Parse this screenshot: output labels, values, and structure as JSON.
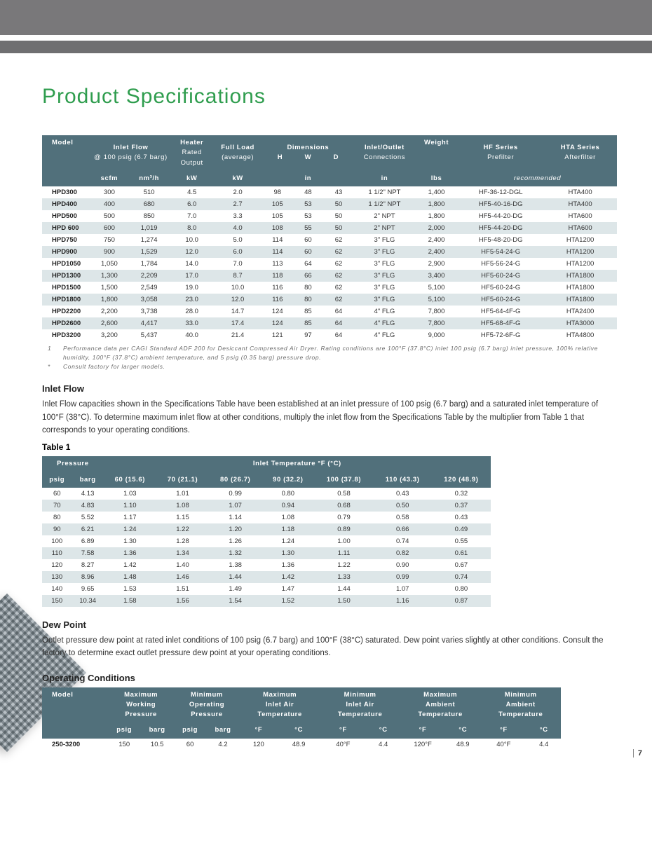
{
  "page": {
    "title": "Product Specifications",
    "number": "7"
  },
  "spec_table": {
    "header": {
      "model": "Model",
      "inlet_flow": "Inlet Flow",
      "inlet_flow_sub": "@ 100 psig\n(6.7 barg)",
      "heater": "Heater",
      "heater_sub": "Rated\nOutput",
      "full_load": "Full Load",
      "full_load_sub": "(average)",
      "dimensions": "Dimensions",
      "dim_h": "H",
      "dim_w": "W",
      "dim_d": "D",
      "connections": "Inlet/Outlet",
      "connections_sub": "Connections",
      "weight": "Weight",
      "hf": "HF Series",
      "hf_sub": "Prefilter",
      "hta": "HTA Series",
      "hta_sub": "Afterfilter",
      "unit_scfm": "scfm",
      "unit_nm3h": "nm³/h",
      "unit_kw1": "kW",
      "unit_kw2": "kW",
      "unit_in1": "in",
      "unit_in2": "in",
      "unit_lbs": "lbs",
      "recommended": "recommended"
    },
    "rows": [
      {
        "model": "HPD300",
        "scfm": "300",
        "nm3h": "510",
        "kw1": "4.5",
        "kw2": "2.0",
        "h": "98",
        "w": "48",
        "d": "43",
        "conn": "1 1/2\" NPT",
        "lbs": "1,400",
        "hf": "HF-36-12-DGL",
        "hta": "HTA400"
      },
      {
        "model": "HPD400",
        "scfm": "400",
        "nm3h": "680",
        "kw1": "6.0",
        "kw2": "2.7",
        "h": "105",
        "w": "53",
        "d": "50",
        "conn": "1 1/2\" NPT",
        "lbs": "1,800",
        "hf": "HF5-40-16-DG",
        "hta": "HTA400"
      },
      {
        "model": "HPD500",
        "scfm": "500",
        "nm3h": "850",
        "kw1": "7.0",
        "kw2": "3.3",
        "h": "105",
        "w": "53",
        "d": "50",
        "conn": "2\" NPT",
        "lbs": "1,800",
        "hf": "HF5-44-20-DG",
        "hta": "HTA600"
      },
      {
        "model": "HPD 600",
        "scfm": "600",
        "nm3h": "1,019",
        "kw1": "8.0",
        "kw2": "4.0",
        "h": "108",
        "w": "55",
        "d": "50",
        "conn": "2\" NPT",
        "lbs": "2,000",
        "hf": "HF5-44-20-DG",
        "hta": "HTA600"
      },
      {
        "model": "HPD750",
        "scfm": "750",
        "nm3h": "1,274",
        "kw1": "10.0",
        "kw2": "5.0",
        "h": "114",
        "w": "60",
        "d": "62",
        "conn": "3\" FLG",
        "lbs": "2,400",
        "hf": "HF5-48-20-DG",
        "hta": "HTA1200"
      },
      {
        "model": "HPD900",
        "scfm": "900",
        "nm3h": "1,529",
        "kw1": "12.0",
        "kw2": "6.0",
        "h": "114",
        "w": "60",
        "d": "62",
        "conn": "3\" FLG",
        "lbs": "2,400",
        "hf": "HF5-54-24-G",
        "hta": "HTA1200"
      },
      {
        "model": "HPD1050",
        "scfm": "1,050",
        "nm3h": "1,784",
        "kw1": "14.0",
        "kw2": "7.0",
        "h": "113",
        "w": "64",
        "d": "62",
        "conn": "3\" FLG",
        "lbs": "2,900",
        "hf": "HF5-56-24-G",
        "hta": "HTA1200"
      },
      {
        "model": "HPD1300",
        "scfm": "1,300",
        "nm3h": "2,209",
        "kw1": "17.0",
        "kw2": "8.7",
        "h": "118",
        "w": "66",
        "d": "62",
        "conn": "3\" FLG",
        "lbs": "3,400",
        "hf": "HF5-60-24-G",
        "hta": "HTA1800"
      },
      {
        "model": "HPD1500",
        "scfm": "1,500",
        "nm3h": "2,549",
        "kw1": "19.0",
        "kw2": "10.0",
        "h": "116",
        "w": "80",
        "d": "62",
        "conn": "3\" FLG",
        "lbs": "5,100",
        "hf": "HF5-60-24-G",
        "hta": "HTA1800"
      },
      {
        "model": "HPD1800",
        "scfm": "1,800",
        "nm3h": "3,058",
        "kw1": "23.0",
        "kw2": "12.0",
        "h": "116",
        "w": "80",
        "d": "62",
        "conn": "3\" FLG",
        "lbs": "5,100",
        "hf": "HF5-60-24-G",
        "hta": "HTA1800"
      },
      {
        "model": "HPD2200",
        "scfm": "2,200",
        "nm3h": "3,738",
        "kw1": "28.0",
        "kw2": "14.7",
        "h": "124",
        "w": "85",
        "d": "64",
        "conn": "4\" FLG",
        "lbs": "7,800",
        "hf": "HF5-64-4F-G",
        "hta": "HTA2400"
      },
      {
        "model": "HPD2600",
        "scfm": "2,600",
        "nm3h": "4,417",
        "kw1": "33.0",
        "kw2": "17.4",
        "h": "124",
        "w": "85",
        "d": "64",
        "conn": "4\" FLG",
        "lbs": "7,800",
        "hf": "HF5-68-4F-G",
        "hta": "HTA3000"
      },
      {
        "model": "HPD3200",
        "scfm": "3,200",
        "nm3h": "5,437",
        "kw1": "40.0",
        "kw2": "21.4",
        "h": "121",
        "w": "97",
        "d": "64",
        "conn": "4\" FLG",
        "lbs": "9,000",
        "hf": "HF5-72-6F-G",
        "hta": "HTA4800"
      }
    ]
  },
  "footnotes": {
    "n1": "1",
    "t1": "Performance data per CAGI Standard ADF 200 for Desiccant Compressed Air Dryer. Rating conditions are 100°F (37.8°C) inlet 100 psig (6.7 barg) inlet pressure, 100% relative humidity, 100°F (37.8°C) ambient temperature, and 5 psig (0.35 barg) pressure drop.",
    "n2": "*",
    "t2": "Consult factory for larger models."
  },
  "inlet_flow": {
    "heading": "Inlet Flow",
    "body": "Inlet Flow capacities shown in the Specifications Table have been established at an inlet pressure of 100 psig (6.7 barg) and a saturated inlet temperature of 100°F (38°C). To determine maximum inlet flow at other conditions, multiply the inlet flow from the Specifications Table by the multiplier from Table 1 that corresponds to your operating conditions.",
    "table_label": "Table 1"
  },
  "table1": {
    "header": {
      "pressure": "Pressure",
      "inlet_temp": "Inlet Temperature °F (°C)",
      "psig": "psig",
      "barg": "barg",
      "cols": [
        "60 (15.6)",
        "70 (21.1)",
        "80 (26.7)",
        "90 (32.2)",
        "100 (37.8)",
        "110 (43.3)",
        "120 (48.9)"
      ]
    },
    "rows": [
      {
        "psig": "60",
        "barg": "4.13",
        "v": [
          "1.03",
          "1.01",
          "0.99",
          "0.80",
          "0.58",
          "0.43",
          "0.32"
        ]
      },
      {
        "psig": "70",
        "barg": "4.83",
        "v": [
          "1.10",
          "1.08",
          "1.07",
          "0.94",
          "0.68",
          "0.50",
          "0.37"
        ]
      },
      {
        "psig": "80",
        "barg": "5.52",
        "v": [
          "1.17",
          "1.15",
          "1.14",
          "1.08",
          "0.79",
          "0.58",
          "0.43"
        ]
      },
      {
        "psig": "90",
        "barg": "6.21",
        "v": [
          "1.24",
          "1.22",
          "1.20",
          "1.18",
          "0.89",
          "0.66",
          "0.49"
        ]
      },
      {
        "psig": "100",
        "barg": "6.89",
        "v": [
          "1.30",
          "1.28",
          "1.26",
          "1.24",
          "1.00",
          "0.74",
          "0.55"
        ]
      },
      {
        "psig": "110",
        "barg": "7.58",
        "v": [
          "1.36",
          "1.34",
          "1.32",
          "1.30",
          "1.11",
          "0.82",
          "0.61"
        ]
      },
      {
        "psig": "120",
        "barg": "8.27",
        "v": [
          "1.42",
          "1.40",
          "1.38",
          "1.36",
          "1.22",
          "0.90",
          "0.67"
        ]
      },
      {
        "psig": "130",
        "barg": "8.96",
        "v": [
          "1.48",
          "1.46",
          "1.44",
          "1.42",
          "1.33",
          "0.99",
          "0.74"
        ]
      },
      {
        "psig": "140",
        "barg": "9.65",
        "v": [
          "1.53",
          "1.51",
          "1.49",
          "1.47",
          "1.44",
          "1.07",
          "0.80"
        ]
      },
      {
        "psig": "150",
        "barg": "10.34",
        "v": [
          "1.58",
          "1.56",
          "1.54",
          "1.52",
          "1.50",
          "1.16",
          "0.87"
        ]
      }
    ]
  },
  "dew_point": {
    "heading": "Dew Point",
    "body": "Outlet pressure dew point at rated inlet conditions of 100 psig (6.7 barg) and 100°F (38°C) saturated. Dew point varies slightly at other conditions. Consult the factory to determine exact outlet pressure dew point at your operating conditions."
  },
  "operating": {
    "heading": "Operating Conditions",
    "header": {
      "model": "Model",
      "max_wp": "Maximum\nWorking\nPressure",
      "min_op": "Minimum\nOperating\nPressure",
      "max_iat": "Maximum\nInlet Air\nTemperature",
      "min_iat": "Minimum\nInlet Air\nTemperature",
      "max_amb": "Maximum\nAmbient\nTemperature",
      "min_amb": "Minimum\nAmbient\nTemperature",
      "psig": "psig",
      "barg": "barg",
      "f": "°F",
      "c": "°C"
    },
    "row": {
      "model": "250-3200",
      "v": [
        "150",
        "10.5",
        "60",
        "4.2",
        "120",
        "48.9",
        "40°F",
        "4.4",
        "120°F",
        "48.9",
        "40°F",
        "4.4"
      ]
    }
  }
}
